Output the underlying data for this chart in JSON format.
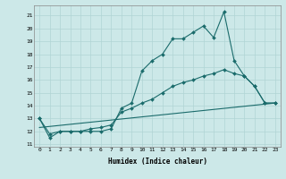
{
  "xlabel": "Humidex (Indice chaleur)",
  "background_color": "#cce8e8",
  "grid_color": "#b0d4d4",
  "line_color": "#1a6b6b",
  "xlim": [
    -0.5,
    23.5
  ],
  "ylim": [
    10.8,
    21.8
  ],
  "yticks": [
    11,
    12,
    13,
    14,
    15,
    16,
    17,
    18,
    19,
    20,
    21
  ],
  "xticks": [
    0,
    1,
    2,
    3,
    4,
    5,
    6,
    7,
    8,
    9,
    10,
    11,
    12,
    13,
    14,
    15,
    16,
    17,
    18,
    19,
    20,
    21,
    22,
    23
  ],
  "line1_x": [
    0,
    1,
    2,
    3,
    4,
    5,
    6,
    7,
    8,
    9,
    10,
    11,
    12,
    13,
    14,
    15,
    16,
    17,
    18,
    19,
    20,
    21,
    22,
    23
  ],
  "line1_y": [
    13.0,
    11.5,
    12.0,
    12.0,
    12.0,
    12.0,
    12.0,
    12.2,
    13.8,
    14.2,
    16.7,
    17.5,
    18.0,
    19.2,
    19.2,
    19.7,
    20.2,
    19.3,
    21.3,
    17.5,
    16.3,
    15.5,
    14.2,
    14.2
  ],
  "line2_x": [
    0,
    1,
    2,
    3,
    4,
    5,
    6,
    7,
    8,
    9,
    10,
    11,
    12,
    13,
    14,
    15,
    16,
    17,
    18,
    19,
    20,
    21,
    22,
    23
  ],
  "line2_y": [
    13.0,
    11.8,
    12.0,
    12.0,
    12.0,
    12.2,
    12.3,
    12.5,
    13.5,
    13.8,
    14.2,
    14.5,
    15.0,
    15.5,
    15.8,
    16.0,
    16.3,
    16.5,
    16.8,
    16.5,
    16.3,
    15.5,
    14.2,
    14.2
  ],
  "line3_x": [
    0,
    23
  ],
  "line3_y": [
    12.3,
    14.2
  ]
}
